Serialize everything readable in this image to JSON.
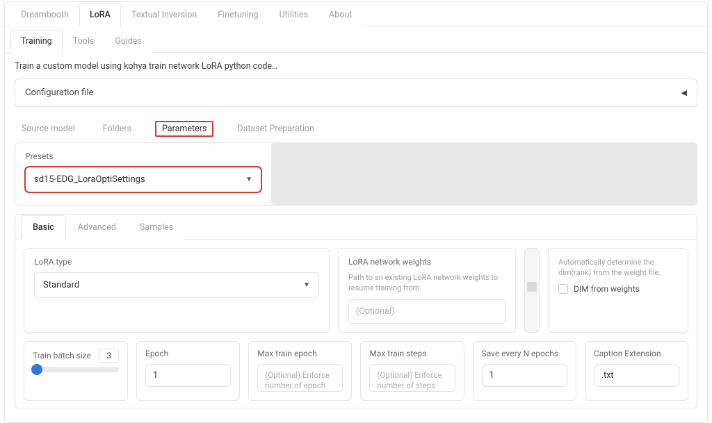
{
  "mainTabs": {
    "items": [
      "Dreambooth",
      "LoRA",
      "Textual Inversion",
      "Finetuning",
      "Utilities",
      "About"
    ],
    "activeIndex": 1
  },
  "subTabs": {
    "items": [
      "Training",
      "Tools",
      "Guides"
    ],
    "activeIndex": 0
  },
  "description": "Train a custom model using kohya train network LoRA python code…",
  "configBar": {
    "label": "Configuration file",
    "arrow": "◀"
  },
  "sectionTabs": {
    "items": [
      "Source model",
      "Folders",
      "Parameters",
      "Dataset Preparation"
    ],
    "activeIndex": 2,
    "highlightColor": "#d63a2f"
  },
  "presets": {
    "label": "Presets",
    "value": "sd15-EDG_LoraOptiSettings",
    "highlight": true,
    "highlightColor": "#d63a2f"
  },
  "paramTabs": {
    "items": [
      "Basic",
      "Advanced",
      "Samples"
    ],
    "activeIndex": 0
  },
  "loraType": {
    "label": "LoRA type",
    "value": "Standard"
  },
  "networkWeights": {
    "title": "LoRA network weights",
    "sub": "Path to an existing LoRA network weights to resume training from",
    "placeholder": "(Optional)"
  },
  "dimCard": {
    "sub": "Automatically determine the dim(rank) from the weight file.",
    "checkboxLabel": "DIM from weights",
    "checked": false
  },
  "grid": {
    "batch": {
      "label": "Train batch size",
      "value": "3",
      "sliderPercent": 0
    },
    "epoch": {
      "label": "Epoch",
      "value": "1"
    },
    "maxEpoch": {
      "label": "Max train epoch",
      "placeholder": "(Optional) Enforce number of epoch"
    },
    "maxSteps": {
      "label": "Max train steps",
      "placeholder": "(Optional) Enforce number of steps"
    },
    "saveEvery": {
      "label": "Save every N epochs",
      "value": "1"
    },
    "captionExt": {
      "label": "Caption Extension",
      "value": ".txt"
    }
  },
  "colors": {
    "accent": "#2f7bd6",
    "border": "#e5e5e5",
    "muted": "#9e9e9e"
  }
}
